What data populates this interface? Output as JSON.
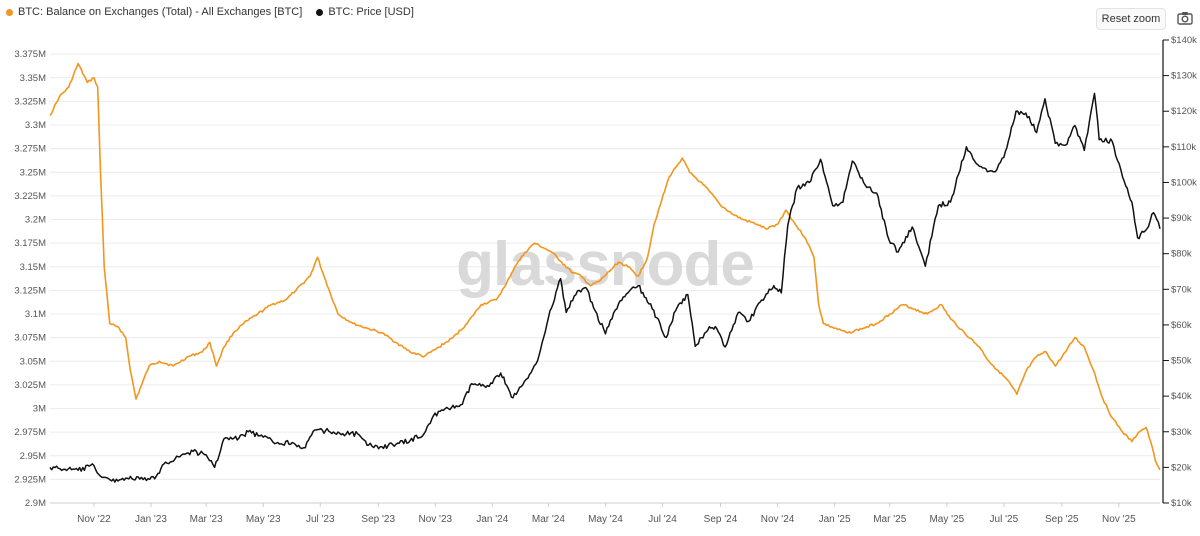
{
  "legend": {
    "balance_label": "BTC: Balance on Exchanges (Total) - All Exchanges [BTC]",
    "price_label": "BTC: Price [USD]"
  },
  "controls": {
    "reset_zoom": "Reset zoom",
    "camera_icon": "camera-icon"
  },
  "watermark": "glassnode",
  "colors": {
    "balance": "#f2961e",
    "price": "#111111",
    "grid": "#ececec"
  },
  "chart_data": {
    "type": "line",
    "title": "",
    "x_tick_labels": [
      "Nov '22",
      "Jan '23",
      "Mar '23",
      "May '23",
      "Jul '23",
      "Sep '23",
      "Nov '23",
      "Jan '24",
      "Mar '24",
      "May '24",
      "Jul '24",
      "Sep '24",
      "Nov '24",
      "Jan '25",
      "Mar '25",
      "May '25",
      "Jul '25",
      "Sep '25",
      "Nov '25"
    ],
    "y_left_tick_labels": [
      "2.9M",
      "2.925M",
      "2.95M",
      "2.975M",
      "3M",
      "3.025M",
      "3.05M",
      "3.075M",
      "3.1M",
      "3.125M",
      "3.15M",
      "3.175M",
      "3.2M",
      "3.225M",
      "3.25M",
      "3.275M",
      "3.3M",
      "3.325M",
      "3.35M",
      "3.375M"
    ],
    "y_right_tick_labels": [
      "$10k",
      "$20k",
      "$30k",
      "$40k",
      "$50k",
      "$60k",
      "$70k",
      "$80k",
      "$90k",
      "$100k",
      "$110k",
      "$120k",
      "$130k",
      "$140k"
    ],
    "y_left_range": [
      2900000,
      3390000
    ],
    "y_right_range": [
      10000,
      140000
    ],
    "x_range": [
      "2022-09-15",
      "2025-12-15"
    ],
    "grid": true,
    "legend_position": "top-left",
    "series": [
      {
        "name": "BTC: Balance on Exchanges (Total) - All Exchanges [BTC]",
        "axis": "left",
        "color": "#f2961e",
        "points": [
          [
            "2022-09-15",
            3310000
          ],
          [
            "2022-09-25",
            3330000
          ],
          [
            "2022-10-05",
            3340000
          ],
          [
            "2022-10-15",
            3365000
          ],
          [
            "2022-10-25",
            3345000
          ],
          [
            "2022-11-01",
            3350000
          ],
          [
            "2022-11-05",
            3340000
          ],
          [
            "2022-11-08",
            3250000
          ],
          [
            "2022-11-12",
            3150000
          ],
          [
            "2022-11-18",
            3090000
          ],
          [
            "2022-11-28",
            3085000
          ],
          [
            "2022-12-05",
            3075000
          ],
          [
            "2022-12-10",
            3040000
          ],
          [
            "2022-12-16",
            3010000
          ],
          [
            "2022-12-22",
            3025000
          ],
          [
            "2022-12-30",
            3045000
          ],
          [
            "2023-01-10",
            3050000
          ],
          [
            "2023-01-25",
            3045000
          ],
          [
            "2023-02-10",
            3055000
          ],
          [
            "2023-02-25",
            3060000
          ],
          [
            "2023-03-05",
            3070000
          ],
          [
            "2023-03-12",
            3045000
          ],
          [
            "2023-03-20",
            3065000
          ],
          [
            "2023-03-30",
            3080000
          ],
          [
            "2023-04-10",
            3090000
          ],
          [
            "2023-04-25",
            3100000
          ],
          [
            "2023-05-10",
            3110000
          ],
          [
            "2023-05-25",
            3115000
          ],
          [
            "2023-06-05",
            3125000
          ],
          [
            "2023-06-20",
            3140000
          ],
          [
            "2023-06-28",
            3160000
          ],
          [
            "2023-07-05",
            3140000
          ],
          [
            "2023-07-20",
            3100000
          ],
          [
            "2023-08-05",
            3090000
          ],
          [
            "2023-08-20",
            3085000
          ],
          [
            "2023-09-05",
            3080000
          ],
          [
            "2023-09-20",
            3070000
          ],
          [
            "2023-10-05",
            3060000
          ],
          [
            "2023-10-20",
            3055000
          ],
          [
            "2023-11-05",
            3065000
          ],
          [
            "2023-11-20",
            3075000
          ],
          [
            "2023-12-05",
            3090000
          ],
          [
            "2023-12-20",
            3110000
          ],
          [
            "2024-01-05",
            3115000
          ],
          [
            "2024-01-15",
            3130000
          ],
          [
            "2024-01-25",
            3150000
          ],
          [
            "2024-02-05",
            3165000
          ],
          [
            "2024-02-15",
            3175000
          ],
          [
            "2024-02-25",
            3170000
          ],
          [
            "2024-03-05",
            3165000
          ],
          [
            "2024-03-15",
            3155000
          ],
          [
            "2024-03-25",
            3145000
          ],
          [
            "2024-04-05",
            3140000
          ],
          [
            "2024-04-15",
            3130000
          ],
          [
            "2024-04-25",
            3135000
          ],
          [
            "2024-05-05",
            3145000
          ],
          [
            "2024-05-15",
            3155000
          ],
          [
            "2024-05-25",
            3150000
          ],
          [
            "2024-06-05",
            3140000
          ],
          [
            "2024-06-15",
            3160000
          ],
          [
            "2024-06-22",
            3195000
          ],
          [
            "2024-06-30",
            3220000
          ],
          [
            "2024-07-08",
            3245000
          ],
          [
            "2024-07-15",
            3255000
          ],
          [
            "2024-07-22",
            3265000
          ],
          [
            "2024-07-30",
            3250000
          ],
          [
            "2024-08-10",
            3240000
          ],
          [
            "2024-08-20",
            3230000
          ],
          [
            "2024-09-01",
            3215000
          ],
          [
            "2024-09-15",
            3205000
          ],
          [
            "2024-09-25",
            3200000
          ],
          [
            "2024-10-10",
            3195000
          ],
          [
            "2024-10-20",
            3190000
          ],
          [
            "2024-11-01",
            3195000
          ],
          [
            "2024-11-10",
            3210000
          ],
          [
            "2024-11-20",
            3195000
          ],
          [
            "2024-12-01",
            3180000
          ],
          [
            "2024-12-10",
            3160000
          ],
          [
            "2024-12-15",
            3110000
          ],
          [
            "2024-12-20",
            3090000
          ],
          [
            "2025-01-01",
            3085000
          ],
          [
            "2025-01-15",
            3080000
          ],
          [
            "2025-02-01",
            3085000
          ],
          [
            "2025-02-15",
            3090000
          ],
          [
            "2025-03-01",
            3100000
          ],
          [
            "2025-03-15",
            3110000
          ],
          [
            "2025-03-28",
            3105000
          ],
          [
            "2025-04-10",
            3100000
          ],
          [
            "2025-04-25",
            3110000
          ],
          [
            "2025-05-05",
            3095000
          ],
          [
            "2025-05-20",
            3080000
          ],
          [
            "2025-06-05",
            3065000
          ],
          [
            "2025-06-15",
            3050000
          ],
          [
            "2025-06-25",
            3040000
          ],
          [
            "2025-07-05",
            3030000
          ],
          [
            "2025-07-15",
            3015000
          ],
          [
            "2025-07-25",
            3040000
          ],
          [
            "2025-08-05",
            3055000
          ],
          [
            "2025-08-15",
            3060000
          ],
          [
            "2025-08-25",
            3045000
          ],
          [
            "2025-09-05",
            3060000
          ],
          [
            "2025-09-15",
            3075000
          ],
          [
            "2025-09-25",
            3065000
          ],
          [
            "2025-10-05",
            3040000
          ],
          [
            "2025-10-15",
            3010000
          ],
          [
            "2025-10-25",
            2990000
          ],
          [
            "2025-11-05",
            2975000
          ],
          [
            "2025-11-15",
            2965000
          ],
          [
            "2025-11-22",
            2975000
          ],
          [
            "2025-11-30",
            2980000
          ],
          [
            "2025-12-05",
            2965000
          ],
          [
            "2025-12-10",
            2945000
          ],
          [
            "2025-12-15",
            2935000
          ]
        ]
      },
      {
        "name": "BTC: Price [USD]",
        "axis": "right",
        "color": "#111111",
        "points": [
          [
            "2022-09-15",
            20000
          ],
          [
            "2022-10-01",
            19500
          ],
          [
            "2022-10-15",
            19200
          ],
          [
            "2022-11-01",
            20500
          ],
          [
            "2022-11-08",
            17500
          ],
          [
            "2022-11-20",
            16200
          ],
          [
            "2022-12-05",
            17000
          ],
          [
            "2022-12-20",
            16700
          ],
          [
            "2023-01-05",
            16800
          ],
          [
            "2023-01-15",
            21000
          ],
          [
            "2023-01-30",
            23000
          ],
          [
            "2023-02-15",
            24500
          ],
          [
            "2023-03-01",
            23500
          ],
          [
            "2023-03-10",
            20000
          ],
          [
            "2023-03-20",
            28000
          ],
          [
            "2023-04-05",
            28200
          ],
          [
            "2023-04-15",
            30000
          ],
          [
            "2023-05-01",
            28500
          ],
          [
            "2023-05-15",
            26800
          ],
          [
            "2023-06-01",
            27000
          ],
          [
            "2023-06-15",
            25500
          ],
          [
            "2023-06-25",
            30500
          ],
          [
            "2023-07-10",
            30200
          ],
          [
            "2023-07-25",
            29500
          ],
          [
            "2023-08-10",
            29400
          ],
          [
            "2023-08-20",
            26200
          ],
          [
            "2023-09-05",
            25800
          ],
          [
            "2023-09-20",
            26500
          ],
          [
            "2023-10-05",
            27500
          ],
          [
            "2023-10-20",
            29500
          ],
          [
            "2023-10-30",
            34500
          ],
          [
            "2023-11-15",
            36500
          ],
          [
            "2023-11-30",
            37700
          ],
          [
            "2023-12-10",
            43500
          ],
          [
            "2023-12-25",
            42500
          ],
          [
            "2024-01-10",
            46500
          ],
          [
            "2024-01-23",
            39500
          ],
          [
            "2024-02-08",
            45000
          ],
          [
            "2024-02-20",
            51500
          ],
          [
            "2024-03-01",
            62000
          ],
          [
            "2024-03-14",
            73000
          ],
          [
            "2024-03-20",
            63500
          ],
          [
            "2024-04-01",
            69500
          ],
          [
            "2024-04-10",
            70500
          ],
          [
            "2024-04-20",
            64000
          ],
          [
            "2024-05-01",
            57500
          ],
          [
            "2024-05-15",
            66000
          ],
          [
            "2024-05-25",
            69000
          ],
          [
            "2024-06-05",
            71000
          ],
          [
            "2024-06-20",
            64500
          ],
          [
            "2024-07-05",
            56500
          ],
          [
            "2024-07-15",
            64000
          ],
          [
            "2024-07-28",
            68500
          ],
          [
            "2024-08-05",
            54000
          ],
          [
            "2024-08-20",
            59500
          ],
          [
            "2024-08-28",
            59000
          ],
          [
            "2024-09-06",
            53800
          ],
          [
            "2024-09-20",
            63500
          ],
          [
            "2024-10-01",
            61000
          ],
          [
            "2024-10-15",
            67000
          ],
          [
            "2024-10-28",
            71000
          ],
          [
            "2024-11-05",
            69000
          ],
          [
            "2024-11-12",
            88000
          ],
          [
            "2024-11-22",
            98500
          ],
          [
            "2024-12-05",
            100000
          ],
          [
            "2024-12-17",
            106500
          ],
          [
            "2024-12-30",
            93500
          ],
          [
            "2025-01-10",
            94500
          ],
          [
            "2025-01-20",
            106000
          ],
          [
            "2025-02-01",
            100000
          ],
          [
            "2025-02-15",
            97000
          ],
          [
            "2025-02-28",
            84000
          ],
          [
            "2025-03-10",
            80500
          ],
          [
            "2025-03-25",
            87500
          ],
          [
            "2025-04-08",
            76500
          ],
          [
            "2025-04-22",
            93500
          ],
          [
            "2025-05-05",
            94500
          ],
          [
            "2025-05-22",
            110000
          ],
          [
            "2025-06-05",
            104500
          ],
          [
            "2025-06-20",
            103000
          ],
          [
            "2025-07-01",
            107000
          ],
          [
            "2025-07-14",
            120000
          ],
          [
            "2025-07-28",
            118500
          ],
          [
            "2025-08-05",
            114000
          ],
          [
            "2025-08-14",
            123500
          ],
          [
            "2025-08-25",
            111000
          ],
          [
            "2025-09-05",
            110500
          ],
          [
            "2025-09-15",
            116000
          ],
          [
            "2025-09-25",
            109000
          ],
          [
            "2025-10-06",
            125000
          ],
          [
            "2025-10-11",
            112000
          ],
          [
            "2025-10-25",
            111500
          ],
          [
            "2025-11-05",
            101500
          ],
          [
            "2025-11-15",
            94500
          ],
          [
            "2025-11-21",
            84500
          ],
          [
            "2025-12-01",
            87000
          ],
          [
            "2025-12-08",
            91500
          ],
          [
            "2025-12-15",
            87000
          ]
        ]
      }
    ]
  }
}
